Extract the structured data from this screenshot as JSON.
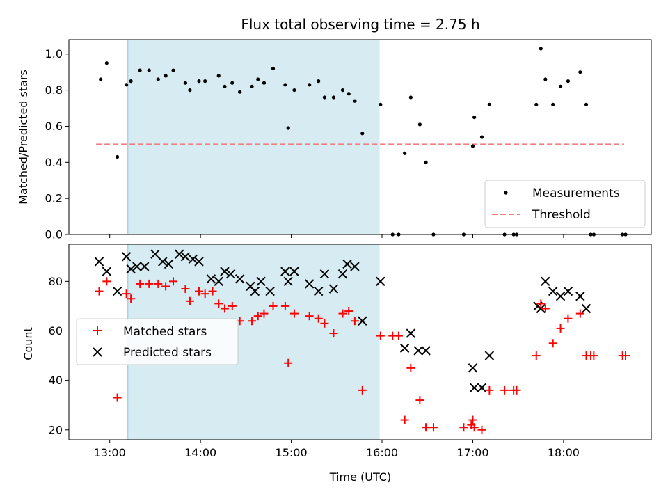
{
  "chart_data": [
    {
      "type": "scatter",
      "title": "Flux total observing time = 2.75 h",
      "xlabel": "",
      "ylabel": "Matched/Predicted stars",
      "xlim": [
        "12:33",
        "18:58"
      ],
      "ylim": [
        0,
        1.08
      ],
      "yticks": [
        "0.0",
        "0.2",
        "0.4",
        "0.6",
        "0.8",
        "1.0"
      ],
      "shaded_region": {
        "x_start": "13:12",
        "x_end": "15:58",
        "color": "#add8e6"
      },
      "threshold": {
        "y": 0.5,
        "x_start": "12:51",
        "x_end": "18:40",
        "label": "Threshold",
        "color": "#f08080"
      },
      "legend": {
        "position": "lower-right",
        "entries": [
          "Measurements",
          "Threshold"
        ]
      },
      "series": [
        {
          "name": "Measurements",
          "color": "#000000",
          "marker": "dot",
          "points": [
            [
              "12:54",
              0.86
            ],
            [
              "12:58",
              0.95
            ],
            [
              "13:05",
              0.43
            ],
            [
              "13:11",
              0.83
            ],
            [
              "13:14",
              0.85
            ],
            [
              "13:20",
              0.91
            ],
            [
              "13:26",
              0.91
            ],
            [
              "13:32",
              0.86
            ],
            [
              "13:37",
              0.88
            ],
            [
              "13:42",
              0.91
            ],
            [
              "13:50",
              0.84
            ],
            [
              "13:53",
              0.8
            ],
            [
              "13:59",
              0.85
            ],
            [
              "14:03",
              0.85
            ],
            [
              "14:12",
              0.88
            ],
            [
              "14:16",
              0.82
            ],
            [
              "14:21",
              0.84
            ],
            [
              "14:26",
              0.79
            ],
            [
              "14:34",
              0.82
            ],
            [
              "14:38",
              0.86
            ],
            [
              "14:42",
              0.84
            ],
            [
              "14:48",
              0.92
            ],
            [
              "14:56",
              0.83
            ],
            [
              "14:58",
              0.59
            ],
            [
              "15:02",
              0.8
            ],
            [
              "15:12",
              0.83
            ],
            [
              "15:18",
              0.85
            ],
            [
              "15:22",
              0.76
            ],
            [
              "15:28",
              0.76
            ],
            [
              "15:34",
              0.8
            ],
            [
              "15:38",
              0.78
            ],
            [
              "15:42",
              0.74
            ],
            [
              "15:47",
              0.56
            ],
            [
              "15:59",
              0.72
            ],
            [
              "16:07",
              0.0
            ],
            [
              "16:11",
              0.0
            ],
            [
              "16:15",
              0.45
            ],
            [
              "16:19",
              0.76
            ],
            [
              "16:25",
              0.61
            ],
            [
              "16:29",
              0.4
            ],
            [
              "16:34",
              0.0
            ],
            [
              "16:54",
              0.0
            ],
            [
              "17:00",
              0.49
            ],
            [
              "17:01",
              0.65
            ],
            [
              "17:06",
              0.54
            ],
            [
              "17:11",
              0.72
            ],
            [
              "17:21",
              0.0
            ],
            [
              "17:27",
              0.0
            ],
            [
              "17:29",
              0.0
            ],
            [
              "17:42",
              0.72
            ],
            [
              "17:45",
              1.03
            ],
            [
              "17:48",
              0.86
            ],
            [
              "17:53",
              0.72
            ],
            [
              "17:58",
              0.82
            ],
            [
              "18:03",
              0.85
            ],
            [
              "18:11",
              0.9
            ],
            [
              "18:15",
              0.72
            ],
            [
              "18:18",
              0.0
            ],
            [
              "18:20",
              0.0
            ],
            [
              "18:39",
              0.0
            ],
            [
              "18:41",
              0.0
            ]
          ]
        }
      ]
    },
    {
      "type": "scatter",
      "title": "",
      "xlabel": "Time (UTC)",
      "ylabel": "Count",
      "xlim": [
        "12:33",
        "18:58"
      ],
      "ylim": [
        16,
        95
      ],
      "xticks": [
        "13:00",
        "14:00",
        "15:00",
        "16:00",
        "17:00",
        "18:00"
      ],
      "yticks": [
        "20",
        "40",
        "60",
        "80"
      ],
      "shaded_region": {
        "x_start": "13:12",
        "x_end": "15:58",
        "color": "#add8e6"
      },
      "legend": {
        "position": "center-left",
        "entries": [
          "Matched stars",
          "Predicted stars"
        ]
      },
      "series": [
        {
          "name": "Matched stars",
          "color": "#ff0000",
          "marker": "plus",
          "points": [
            [
              "12:53",
              76
            ],
            [
              "12:58",
              80
            ],
            [
              "13:05",
              33
            ],
            [
              "13:11",
              75
            ],
            [
              "13:14",
              73
            ],
            [
              "13:20",
              79
            ],
            [
              "13:26",
              79
            ],
            [
              "13:32",
              79
            ],
            [
              "13:37",
              78
            ],
            [
              "13:42",
              80
            ],
            [
              "13:50",
              77
            ],
            [
              "13:53",
              72
            ],
            [
              "13:59",
              76
            ],
            [
              "14:03",
              75
            ],
            [
              "14:08",
              76
            ],
            [
              "14:12",
              71
            ],
            [
              "14:16",
              69
            ],
            [
              "14:21",
              70
            ],
            [
              "14:26",
              64
            ],
            [
              "14:34",
              64
            ],
            [
              "14:38",
              66
            ],
            [
              "14:42",
              67
            ],
            [
              "14:48",
              70
            ],
            [
              "14:56",
              70
            ],
            [
              "14:58",
              47
            ],
            [
              "15:02",
              67
            ],
            [
              "15:12",
              66
            ],
            [
              "15:18",
              65
            ],
            [
              "15:22",
              63
            ],
            [
              "15:28",
              59
            ],
            [
              "15:34",
              67
            ],
            [
              "15:38",
              68
            ],
            [
              "15:42",
              64
            ],
            [
              "15:47",
              36
            ],
            [
              "15:59",
              58
            ],
            [
              "16:07",
              58
            ],
            [
              "16:11",
              58
            ],
            [
              "16:15",
              24
            ],
            [
              "16:19",
              45
            ],
            [
              "16:25",
              32
            ],
            [
              "16:29",
              21
            ],
            [
              "16:34",
              21
            ],
            [
              "16:54",
              21
            ],
            [
              "16:59",
              22
            ],
            [
              "17:00",
              24
            ],
            [
              "17:01",
              21
            ],
            [
              "17:06",
              20
            ],
            [
              "17:11",
              36
            ],
            [
              "17:21",
              36
            ],
            [
              "17:27",
              36
            ],
            [
              "17:29",
              36
            ],
            [
              "17:42",
              50
            ],
            [
              "17:45",
              71
            ],
            [
              "17:48",
              69
            ],
            [
              "17:53",
              55
            ],
            [
              "17:58",
              61
            ],
            [
              "18:03",
              65
            ],
            [
              "18:11",
              67
            ],
            [
              "18:15",
              50
            ],
            [
              "18:18",
              50
            ],
            [
              "18:20",
              50
            ],
            [
              "18:39",
              50
            ],
            [
              "18:41",
              50
            ]
          ]
        },
        {
          "name": "Predicted stars",
          "color": "#000000",
          "marker": "x",
          "points": [
            [
              "12:53",
              88
            ],
            [
              "12:58",
              84
            ],
            [
              "13:05",
              76
            ],
            [
              "13:11",
              90
            ],
            [
              "13:14",
              85
            ],
            [
              "13:18",
              86
            ],
            [
              "13:23",
              86
            ],
            [
              "13:30",
              91
            ],
            [
              "13:35",
              88
            ],
            [
              "13:39",
              87
            ],
            [
              "13:46",
              91
            ],
            [
              "13:50",
              90
            ],
            [
              "13:55",
              89
            ],
            [
              "13:59",
              88
            ],
            [
              "14:07",
              81
            ],
            [
              "14:12",
              80
            ],
            [
              "14:16",
              84
            ],
            [
              "14:20",
              83
            ],
            [
              "14:26",
              81
            ],
            [
              "14:33",
              78
            ],
            [
              "14:36",
              76
            ],
            [
              "14:40",
              80
            ],
            [
              "14:46",
              76
            ],
            [
              "14:56",
              84
            ],
            [
              "14:58",
              80
            ],
            [
              "15:02",
              84
            ],
            [
              "15:12",
              79
            ],
            [
              "15:18",
              76
            ],
            [
              "15:22",
              83
            ],
            [
              "15:28",
              77
            ],
            [
              "15:34",
              83
            ],
            [
              "15:37",
              87
            ],
            [
              "15:42",
              86
            ],
            [
              "15:47",
              64
            ],
            [
              "15:59",
              80
            ],
            [
              "16:15",
              53
            ],
            [
              "16:19",
              59
            ],
            [
              "16:24",
              52
            ],
            [
              "16:29",
              52
            ],
            [
              "17:00",
              45
            ],
            [
              "17:01",
              37
            ],
            [
              "17:06",
              37
            ],
            [
              "17:11",
              50
            ],
            [
              "17:43",
              70
            ],
            [
              "17:45",
              69
            ],
            [
              "17:48",
              80
            ],
            [
              "17:53",
              76
            ],
            [
              "17:58",
              74
            ],
            [
              "18:03",
              76
            ],
            [
              "18:11",
              74
            ],
            [
              "18:15",
              69
            ]
          ]
        }
      ]
    }
  ]
}
